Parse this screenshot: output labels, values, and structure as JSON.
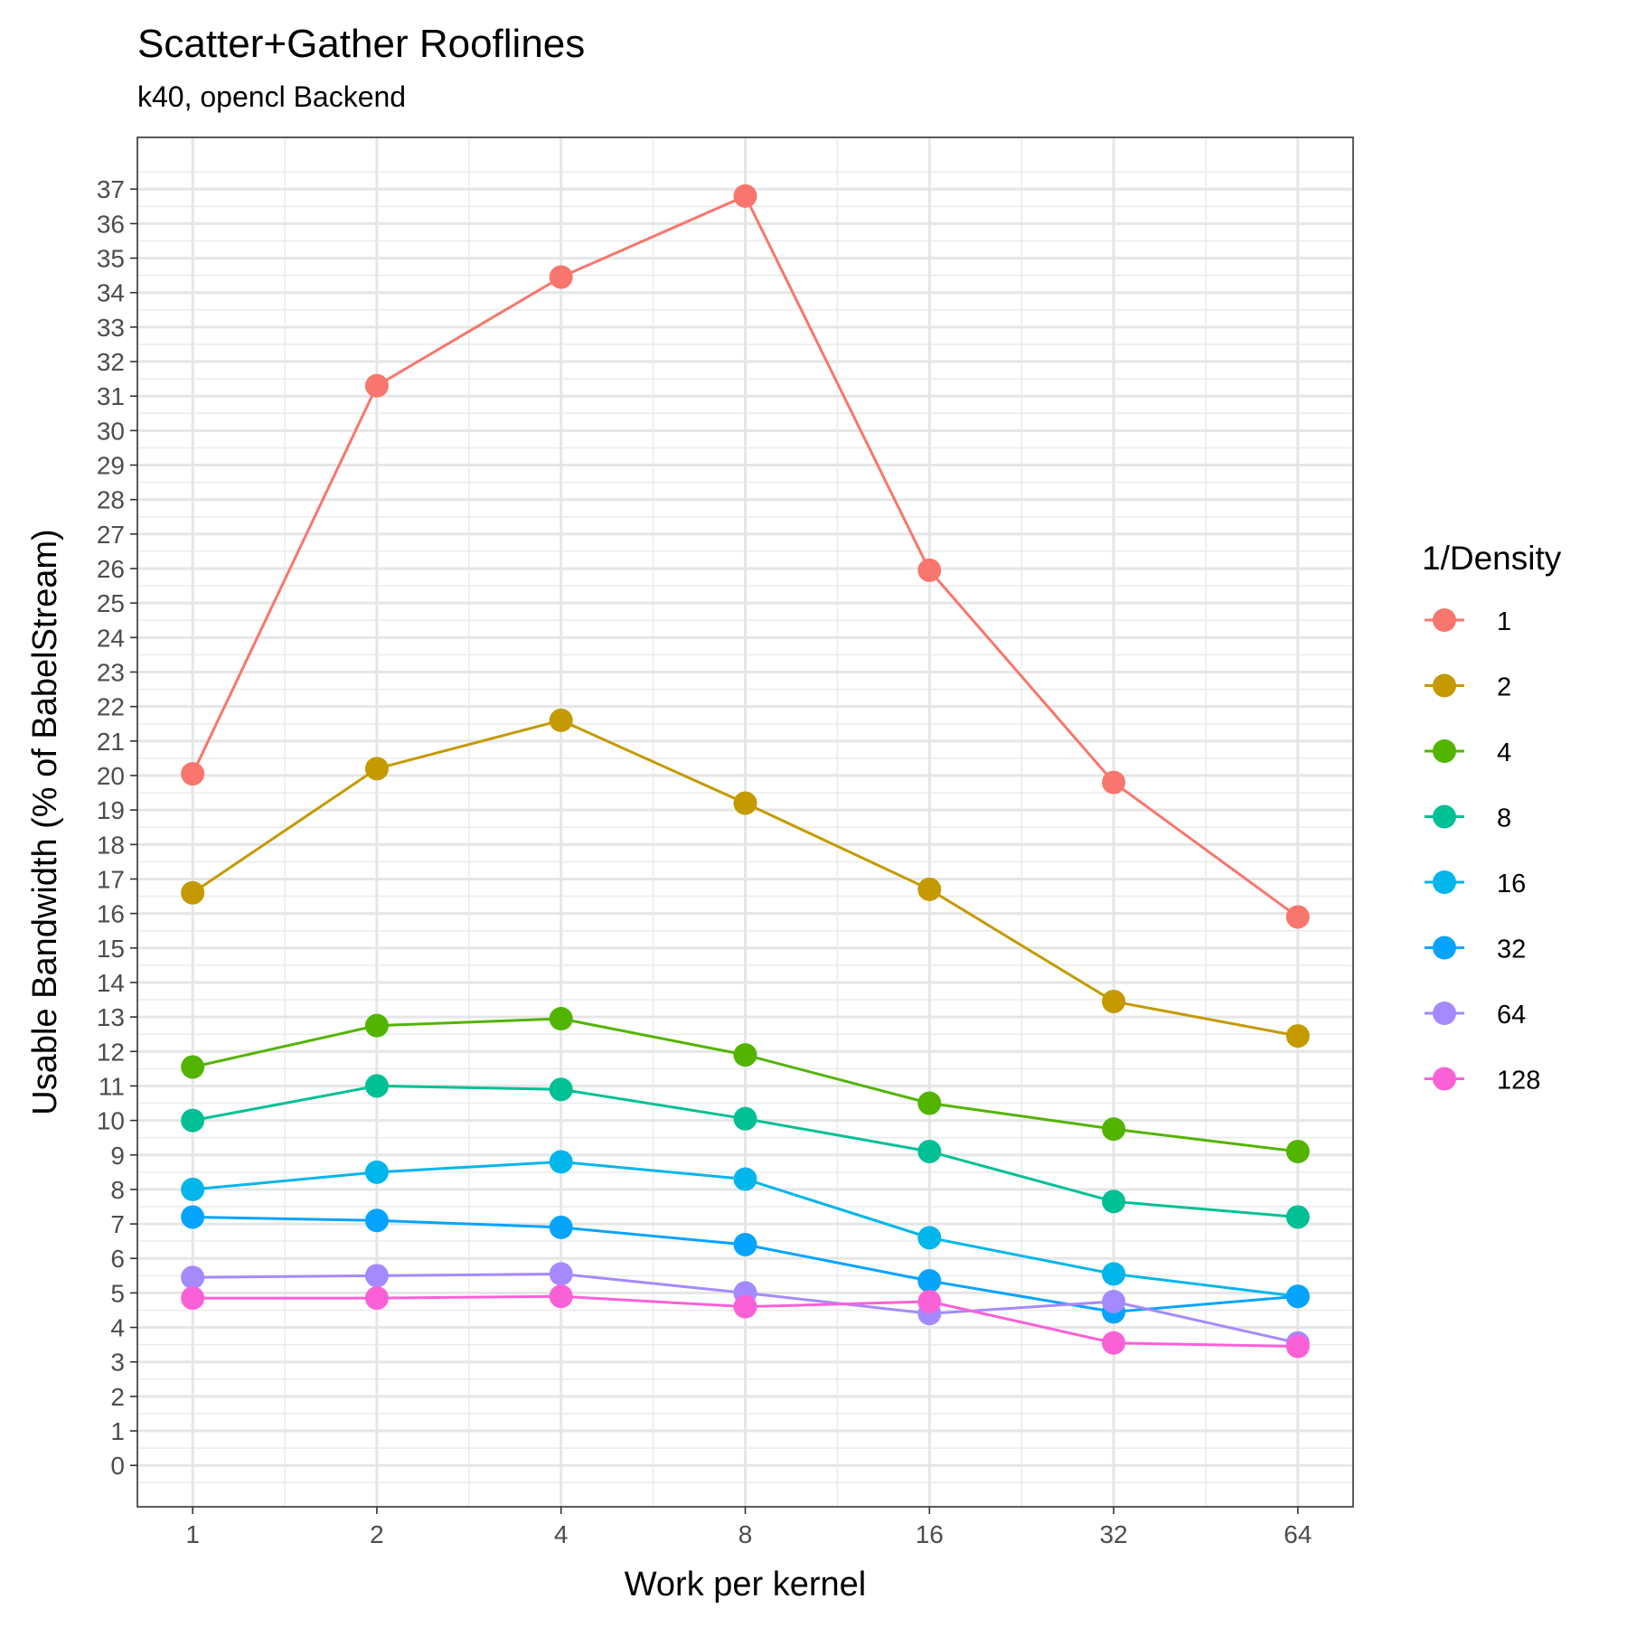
{
  "chart_data": {
    "type": "line",
    "title": "Scatter+Gather Rooflines",
    "subtitle": "k40, opencl Backend",
    "xlabel": "Work per kernel",
    "ylabel": "Usable Bandwidth (% of BabelStream)",
    "x_scale": "log2",
    "x": [
      1,
      2,
      4,
      8,
      16,
      32,
      64
    ],
    "x_tick_labels": [
      "1",
      "2",
      "4",
      "8",
      "16",
      "32",
      "64"
    ],
    "ylim": [
      -1.2,
      38.5
    ],
    "y_ticks": [
      0,
      1,
      2,
      3,
      4,
      5,
      6,
      7,
      8,
      9,
      10,
      11,
      12,
      13,
      14,
      15,
      16,
      17,
      18,
      19,
      20,
      21,
      22,
      23,
      24,
      25,
      26,
      27,
      28,
      29,
      30,
      31,
      32,
      33,
      34,
      35,
      36,
      37
    ],
    "grid": true,
    "legend": {
      "title": "1/Density",
      "position": "right"
    },
    "series": [
      {
        "name": "1",
        "color": "#F8766D",
        "values": [
          20.05,
          31.3,
          34.45,
          36.8,
          25.95,
          19.8,
          15.9
        ]
      },
      {
        "name": "2",
        "color": "#C49A00",
        "values": [
          16.6,
          20.2,
          21.6,
          19.2,
          16.7,
          13.45,
          12.45
        ]
      },
      {
        "name": "4",
        "color": "#53B400",
        "values": [
          11.55,
          12.75,
          12.95,
          11.9,
          10.5,
          9.75,
          9.1
        ]
      },
      {
        "name": "8",
        "color": "#00C094",
        "values": [
          10.0,
          11.0,
          10.9,
          10.05,
          9.1,
          7.65,
          7.2
        ]
      },
      {
        "name": "16",
        "color": "#00B6EB",
        "values": [
          8.0,
          8.5,
          8.8,
          8.3,
          6.6,
          5.55,
          4.9
        ]
      },
      {
        "name": "32",
        "color": "#06A4FF",
        "values": [
          7.2,
          7.1,
          6.9,
          6.4,
          5.35,
          4.45,
          4.9
        ]
      },
      {
        "name": "64",
        "color": "#A58AFF",
        "values": [
          5.45,
          5.5,
          5.55,
          5.0,
          4.4,
          4.75,
          3.55
        ]
      },
      {
        "name": "128",
        "color": "#FB61D7",
        "values": [
          4.85,
          4.85,
          4.9,
          4.6,
          4.75,
          3.55,
          3.45
        ]
      }
    ]
  }
}
